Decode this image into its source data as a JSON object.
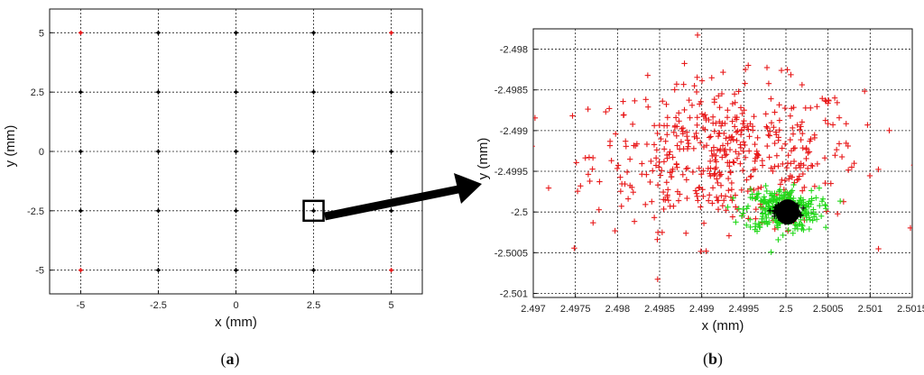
{
  "captions": {
    "a_open": "(",
    "a_letter": "a",
    "a_close": ")",
    "b_open": "(",
    "b_letter": "b",
    "b_close": ")"
  },
  "colors": {
    "red": "#e8191a",
    "green": "#22d81a",
    "black": "#000000",
    "grid": "#222222"
  },
  "chart_data": [
    {
      "panel": "a",
      "type": "scatter",
      "xlabel": "x (mm)",
      "ylabel": "y (mm)",
      "xlim": [
        -6,
        6
      ],
      "ylim": [
        -6,
        6
      ],
      "xticks": [
        -5,
        -2.5,
        0,
        2.5,
        5
      ],
      "yticks": [
        -5,
        -2.5,
        0,
        2.5,
        5
      ],
      "xtick_labels": [
        "-5",
        "-2.5",
        "0",
        "2.5",
        "5"
      ],
      "ytick_labels": [
        "-5",
        "-2.5",
        "0",
        "2.5",
        "5"
      ],
      "grid": true,
      "points": [
        {
          "x": -5,
          "y": 5,
          "color": "red"
        },
        {
          "x": -2.5,
          "y": 5,
          "color": "black"
        },
        {
          "x": 0,
          "y": 5,
          "color": "black"
        },
        {
          "x": 2.5,
          "y": 5,
          "color": "black"
        },
        {
          "x": 5,
          "y": 5,
          "color": "red"
        },
        {
          "x": -5,
          "y": 2.5,
          "color": "black"
        },
        {
          "x": -2.5,
          "y": 2.5,
          "color": "black"
        },
        {
          "x": 0,
          "y": 2.5,
          "color": "black"
        },
        {
          "x": 2.5,
          "y": 2.5,
          "color": "black"
        },
        {
          "x": 5,
          "y": 2.5,
          "color": "black"
        },
        {
          "x": -5,
          "y": 0,
          "color": "black"
        },
        {
          "x": -2.5,
          "y": 0,
          "color": "black"
        },
        {
          "x": 0,
          "y": 0,
          "color": "black"
        },
        {
          "x": 2.5,
          "y": 0,
          "color": "black"
        },
        {
          "x": 5,
          "y": 0,
          "color": "black"
        },
        {
          "x": -5,
          "y": -2.5,
          "color": "black"
        },
        {
          "x": -2.5,
          "y": -2.5,
          "color": "black"
        },
        {
          "x": 0,
          "y": -2.5,
          "color": "black"
        },
        {
          "x": 2.5,
          "y": -2.5,
          "color": "black"
        },
        {
          "x": 5,
          "y": -2.5,
          "color": "black"
        },
        {
          "x": -5,
          "y": -5,
          "color": "red"
        },
        {
          "x": -2.5,
          "y": -5,
          "color": "black"
        },
        {
          "x": 0,
          "y": -5,
          "color": "black"
        },
        {
          "x": 2.5,
          "y": -5,
          "color": "black"
        },
        {
          "x": 5,
          "y": -5,
          "color": "red"
        }
      ],
      "highlight_box": {
        "x": 2.5,
        "y": -2.5
      }
    },
    {
      "panel": "b",
      "type": "scatter",
      "xlabel": "x (mm)",
      "ylabel": "y (mm)",
      "xlim": [
        2.497,
        2.5015
      ],
      "ylim": [
        -2.50105,
        -2.49775
      ],
      "xticks": [
        2.497,
        2.4975,
        2.498,
        2.4985,
        2.499,
        2.4995,
        2.5,
        2.5005,
        2.501,
        2.5015
      ],
      "yticks": [
        -2.498,
        -2.4985,
        -2.499,
        -2.4995,
        -2.5,
        -2.5005,
        -2.501
      ],
      "xtick_labels": [
        "2.497",
        "2.4975",
        "2.498",
        "2.4985",
        "2.499",
        "2.4995",
        "2.5",
        "2.5005",
        "2.501",
        "2.5015"
      ],
      "ytick_labels": [
        "-2.498",
        "-2.4985",
        "-2.499",
        "-2.4995",
        "-2.5",
        "-2.5005",
        "-2.501"
      ],
      "grid": true,
      "series": [
        {
          "color": "red",
          "marker": "+",
          "count": 500,
          "center": [
            2.4993,
            -2.4993
          ],
          "spread": [
            0.0008,
            0.00045
          ]
        },
        {
          "color": "green",
          "marker": "+",
          "count": 300,
          "center": [
            2.49995,
            -2.49997
          ],
          "spread": [
            0.00022,
            0.00013
          ]
        },
        {
          "color": "black",
          "marker": "+",
          "count": 250,
          "center": [
            2.50002,
            -2.5
          ],
          "spread": [
            7e-05,
            4e-05
          ]
        }
      ]
    }
  ]
}
